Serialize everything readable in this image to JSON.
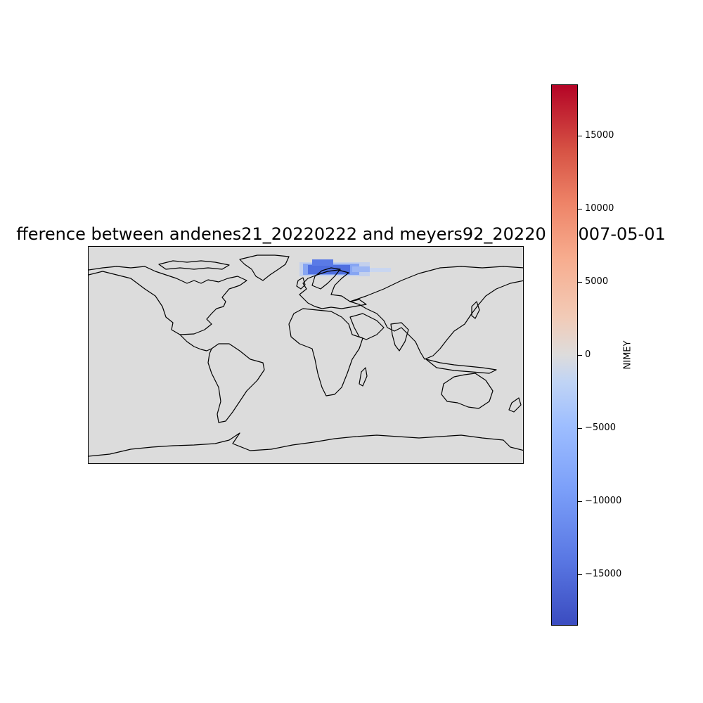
{
  "title": "fference between andenes21_20220222 and meyers92_20220 0 2007-05-01",
  "colorbar": {
    "label": "NIMEY",
    "colormap": "coolwarm",
    "vmin": -18500,
    "vmax": 18500,
    "ticks": [
      {
        "value": 15000,
        "label": "15000"
      },
      {
        "value": 10000,
        "label": "10000"
      },
      {
        "value": 5000,
        "label": "5000"
      },
      {
        "value": 0,
        "label": "0"
      },
      {
        "value": -5000,
        "label": "−5000"
      },
      {
        "value": -10000,
        "label": "−10000"
      },
      {
        "value": -15000,
        "label": "−15000"
      }
    ]
  },
  "map": {
    "projection": "PlateCarree",
    "background_value": 0,
    "anomaly_region": "Barents Sea / northern Scandinavia negative anomaly",
    "colors": {
      "ocean_land": "#dcdcdc",
      "coast": "#000000",
      "neg_strong": "#4f6fe0",
      "neg_mid": "#7f9ff5",
      "neg_weak": "#b5c8f0"
    }
  }
}
